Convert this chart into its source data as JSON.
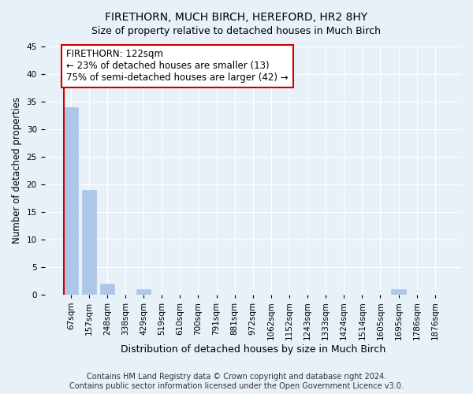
{
  "title": "FIRETHORN, MUCH BIRCH, HEREFORD, HR2 8HY",
  "subtitle": "Size of property relative to detached houses in Much Birch",
  "xlabel": "Distribution of detached houses by size in Much Birch",
  "ylabel": "Number of detached properties",
  "categories": [
    "67sqm",
    "157sqm",
    "248sqm",
    "338sqm",
    "429sqm",
    "519sqm",
    "610sqm",
    "700sqm",
    "791sqm",
    "881sqm",
    "972sqm",
    "1062sqm",
    "1152sqm",
    "1243sqm",
    "1333sqm",
    "1424sqm",
    "1514sqm",
    "1605sqm",
    "1695sqm",
    "1786sqm",
    "1876sqm"
  ],
  "values": [
    34,
    19,
    2,
    0,
    1,
    0,
    0,
    0,
    0,
    0,
    0,
    0,
    0,
    0,
    0,
    0,
    0,
    0,
    1,
    0,
    0
  ],
  "bar_color": "#aec6e8",
  "bar_edge_color": "#aec6e8",
  "highlight_line_color": "#cc0000",
  "annotation_text": "FIRETHORN: 122sqm\n← 23% of detached houses are smaller (13)\n75% of semi-detached houses are larger (42) →",
  "annotation_box_color": "#ffffff",
  "annotation_box_edge": "#cc0000",
  "ylim": [
    0,
    45
  ],
  "yticks": [
    0,
    5,
    10,
    15,
    20,
    25,
    30,
    35,
    40,
    45
  ],
  "bg_color": "#e8f0f8",
  "plot_bg_color": "#e8f0f8",
  "grid_color": "#ffffff",
  "footer": "Contains HM Land Registry data © Crown copyright and database right 2024.\nContains public sector information licensed under the Open Government Licence v3.0.",
  "title_fontsize": 10,
  "subtitle_fontsize": 9,
  "xlabel_fontsize": 9,
  "ylabel_fontsize": 8.5,
  "tick_fontsize": 7.5,
  "annotation_fontsize": 8.5,
  "footer_fontsize": 7
}
